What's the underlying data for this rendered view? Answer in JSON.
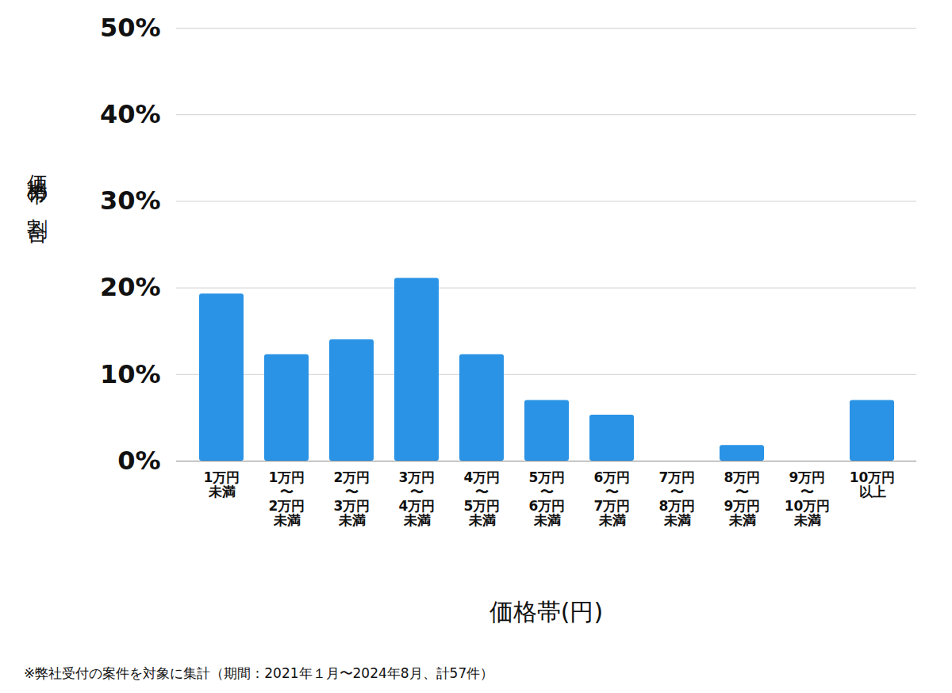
{
  "chart_data": {
    "type": "bar",
    "y_label": "価格帯の割合",
    "x_label": "価格帯(円)",
    "caption": "※弊社受付の案件を対象に集計（期間：2021年１月〜2024年8月、計57件）",
    "categories": [
      "1万円\n未満",
      "1万円\n〜\n2万円\n未満",
      "2万円\n〜\n3万円\n未満",
      "3万円\n〜\n4万円\n未満",
      "4万円\n〜\n5万円\n未満",
      "5万円\n〜\n6万円\n未満",
      "6万円\n〜\n7万円\n未満",
      "7万円\n〜\n8万円\n未満",
      "8万円\n〜\n9万円\n未満",
      "9万円\n〜\n10万円\n未満",
      "10万円\n以上"
    ],
    "values": [
      19.3,
      12.3,
      14.0,
      21.1,
      12.3,
      7.0,
      5.3,
      0,
      1.8,
      0,
      7.0
    ],
    "color": "#2a93e6",
    "ylim": [
      0,
      50
    ],
    "yticks": [
      {
        "value": 0,
        "label": "0%"
      },
      {
        "value": 10,
        "label": "10%"
      },
      {
        "value": 20,
        "label": "20%"
      },
      {
        "value": 30,
        "label": "30%"
      },
      {
        "value": 40,
        "label": "40%"
      },
      {
        "value": 50,
        "label": "50%"
      }
    ],
    "grid": true
  }
}
